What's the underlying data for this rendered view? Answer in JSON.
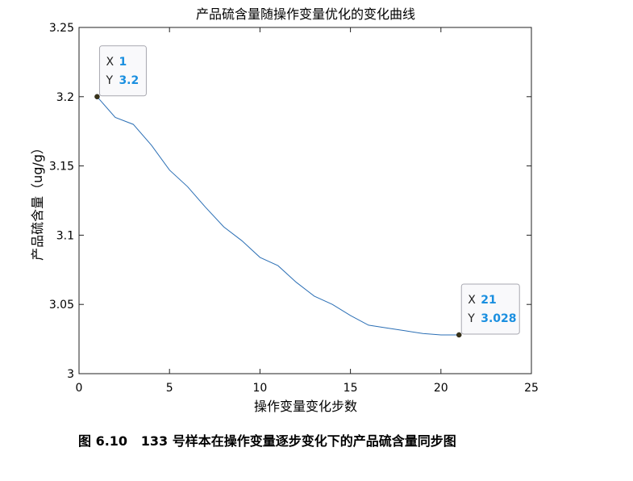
{
  "chart_data": {
    "type": "line",
    "title": "产品硫含量随操作变量优化的变化曲线",
    "xlabel": "操作变量变化步数",
    "ylabel": "产品硫含量（ug/g）",
    "xlim": [
      0,
      25
    ],
    "ylim": [
      3.0,
      3.25
    ],
    "x_ticks": [
      0,
      5,
      10,
      15,
      20,
      25
    ],
    "y_ticks": [
      3,
      3.05,
      3.1,
      3.15,
      3.2,
      3.25
    ],
    "x_tick_labels": [
      "0",
      "5",
      "10",
      "15",
      "20",
      "25"
    ],
    "y_tick_labels": [
      "3",
      "3.05",
      "3.1",
      "3.15",
      "3.2",
      "3.25"
    ],
    "grid": false,
    "series": [
      {
        "color": "#2b6fb5",
        "x": [
          1,
          2,
          3,
          4,
          5,
          6,
          7,
          8,
          9,
          10,
          11,
          12,
          13,
          14,
          15,
          16,
          17,
          18,
          19,
          20,
          21
        ],
        "y": [
          3.2,
          3.185,
          3.18,
          3.165,
          3.147,
          3.135,
          3.12,
          3.106,
          3.096,
          3.084,
          3.078,
          3.066,
          3.056,
          3.05,
          3.042,
          3.035,
          3.033,
          3.031,
          3.029,
          3.028,
          3.028
        ]
      }
    ],
    "annotations": [
      {
        "x": 1,
        "y": 3.2,
        "x_label": "X",
        "y_label": "Y",
        "x_value": "1",
        "y_value": "3.2",
        "placement": "upper-right"
      },
      {
        "x": 21,
        "y": 3.028,
        "x_label": "X",
        "y_label": "Y",
        "x_value": "21",
        "y_value": "3.028",
        "placement": "upper-right"
      }
    ]
  },
  "caption": "图 6.10   133 号样本在操作变量逐步变化下的产品硫含量同步图"
}
